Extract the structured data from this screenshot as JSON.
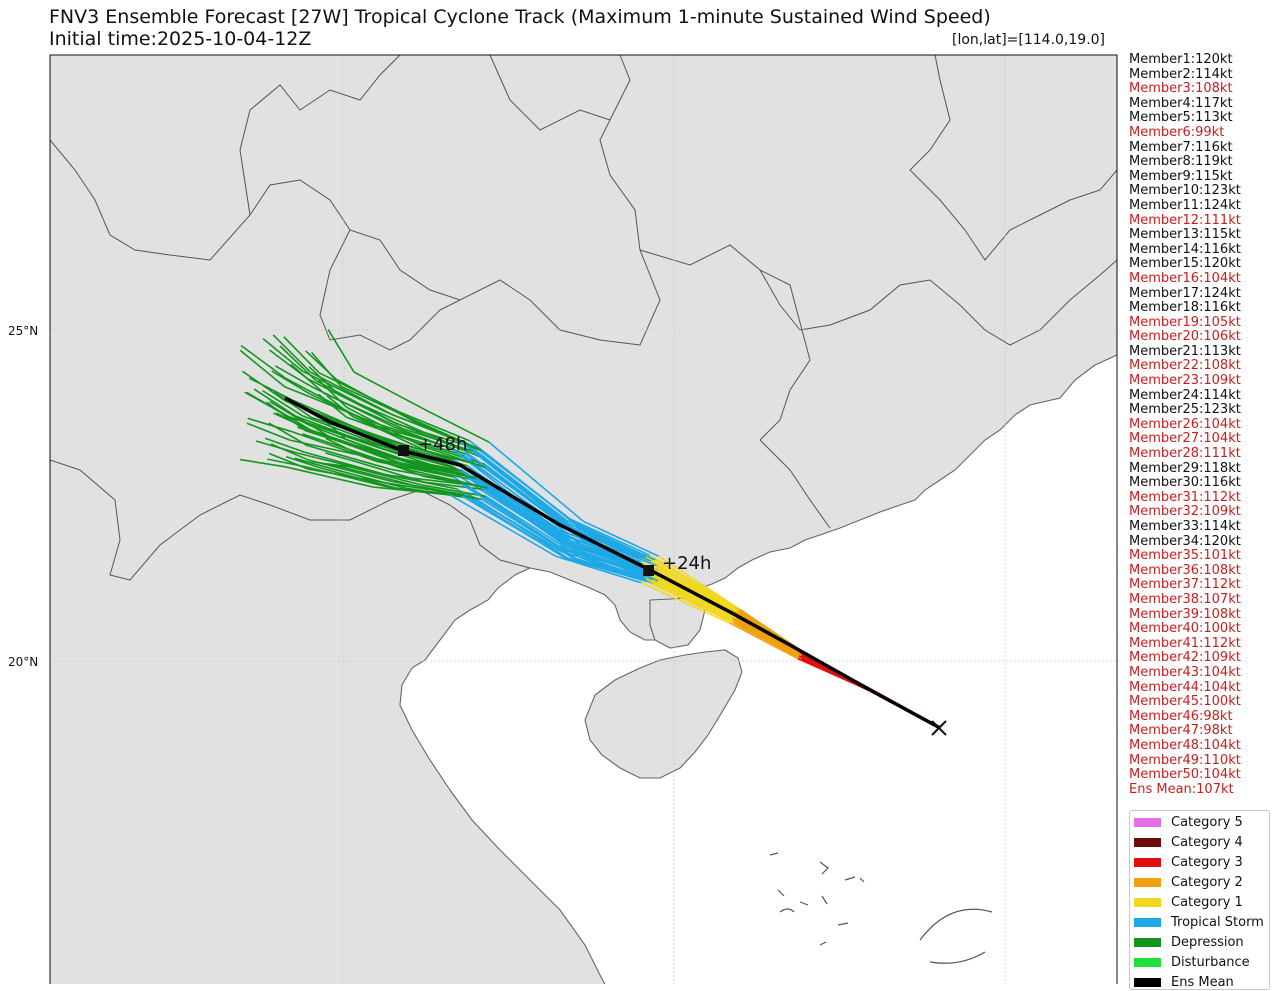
{
  "title": "FNV3 Ensemble Forecast [27W] Tropical Cyclone Track (Maximum 1-minute Sustained Wind Speed)",
  "subtitle": "Initial time:2025-10-04-12Z",
  "coord_readout": "[lon,lat]=[114.0,19.0]",
  "lat_labels": [
    "25°N",
    "20°N"
  ],
  "time_tags": [
    "+48h",
    "+24h"
  ],
  "colors": {
    "category5": "#e66ee6",
    "category4": "#6e0a0a",
    "category3": "#e01010",
    "category2": "#f0a010",
    "category1": "#f0d820",
    "tropical_storm": "#1ea8e6",
    "depression": "#12961e",
    "disturbance": "#22e03c",
    "ens_mean": "#000000",
    "land": "#e1e1e1",
    "sea": "#ffffff",
    "coast": "#666666"
  },
  "members": [
    {
      "label": "Member1:120kt",
      "color": "#111111"
    },
    {
      "label": "Member2:114kt",
      "color": "#111111"
    },
    {
      "label": "Member3:108kt",
      "color": "#c81e1e"
    },
    {
      "label": "Member4:117kt",
      "color": "#111111"
    },
    {
      "label": "Member5:113kt",
      "color": "#111111"
    },
    {
      "label": "Member6:99kt",
      "color": "#c81e1e"
    },
    {
      "label": "Member7:116kt",
      "color": "#111111"
    },
    {
      "label": "Member8:119kt",
      "color": "#111111"
    },
    {
      "label": "Member9:115kt",
      "color": "#111111"
    },
    {
      "label": "Member10:123kt",
      "color": "#111111"
    },
    {
      "label": "Member11:124kt",
      "color": "#111111"
    },
    {
      "label": "Member12:111kt",
      "color": "#c81e1e"
    },
    {
      "label": "Member13:115kt",
      "color": "#111111"
    },
    {
      "label": "Member14:116kt",
      "color": "#111111"
    },
    {
      "label": "Member15:120kt",
      "color": "#111111"
    },
    {
      "label": "Member16:104kt",
      "color": "#c81e1e"
    },
    {
      "label": "Member17:124kt",
      "color": "#111111"
    },
    {
      "label": "Member18:116kt",
      "color": "#111111"
    },
    {
      "label": "Member19:105kt",
      "color": "#c81e1e"
    },
    {
      "label": "Member20:106kt",
      "color": "#c81e1e"
    },
    {
      "label": "Member21:113kt",
      "color": "#111111"
    },
    {
      "label": "Member22:108kt",
      "color": "#c81e1e"
    },
    {
      "label": "Member23:109kt",
      "color": "#c81e1e"
    },
    {
      "label": "Member24:114kt",
      "color": "#111111"
    },
    {
      "label": "Member25:123kt",
      "color": "#111111"
    },
    {
      "label": "Member26:104kt",
      "color": "#c81e1e"
    },
    {
      "label": "Member27:104kt",
      "color": "#c81e1e"
    },
    {
      "label": "Member28:111kt",
      "color": "#c81e1e"
    },
    {
      "label": "Member29:118kt",
      "color": "#111111"
    },
    {
      "label": "Member30:116kt",
      "color": "#111111"
    },
    {
      "label": "Member31:112kt",
      "color": "#c81e1e"
    },
    {
      "label": "Member32:109kt",
      "color": "#c81e1e"
    },
    {
      "label": "Member33:114kt",
      "color": "#111111"
    },
    {
      "label": "Member34:120kt",
      "color": "#111111"
    },
    {
      "label": "Member35:101kt",
      "color": "#c81e1e"
    },
    {
      "label": "Member36:108kt",
      "color": "#c81e1e"
    },
    {
      "label": "Member37:112kt",
      "color": "#c81e1e"
    },
    {
      "label": "Member38:107kt",
      "color": "#c81e1e"
    },
    {
      "label": "Member39:108kt",
      "color": "#c81e1e"
    },
    {
      "label": "Member40:100kt",
      "color": "#c81e1e"
    },
    {
      "label": "Member41:112kt",
      "color": "#c81e1e"
    },
    {
      "label": "Member42:109kt",
      "color": "#c81e1e"
    },
    {
      "label": "Member43:104kt",
      "color": "#c81e1e"
    },
    {
      "label": "Member44:104kt",
      "color": "#c81e1e"
    },
    {
      "label": "Member45:100kt",
      "color": "#c81e1e"
    },
    {
      "label": "Member46:98kt",
      "color": "#c81e1e"
    },
    {
      "label": "Member47:98kt",
      "color": "#c81e1e"
    },
    {
      "label": "Member48:104kt",
      "color": "#c81e1e"
    },
    {
      "label": "Member49:110kt",
      "color": "#c81e1e"
    },
    {
      "label": "Member50:104kt",
      "color": "#c81e1e"
    },
    {
      "label": "Ens Mean:107kt",
      "color": "#c81e1e"
    }
  ],
  "legend": [
    {
      "label": "Category 5",
      "color": "#e66ee6"
    },
    {
      "label": "Category 4",
      "color": "#6e0a0a"
    },
    {
      "label": "Category 3",
      "color": "#e01010"
    },
    {
      "label": "Category 2",
      "color": "#f0a010"
    },
    {
      "label": "Category 1",
      "color": "#f0d820"
    },
    {
      "label": "Tropical Storm",
      "color": "#1ea8e6"
    },
    {
      "label": "Depression",
      "color": "#12961e"
    },
    {
      "label": "Disturbance",
      "color": "#22e03c"
    },
    {
      "label": "Ens Mean",
      "color": "#000000"
    }
  ]
}
